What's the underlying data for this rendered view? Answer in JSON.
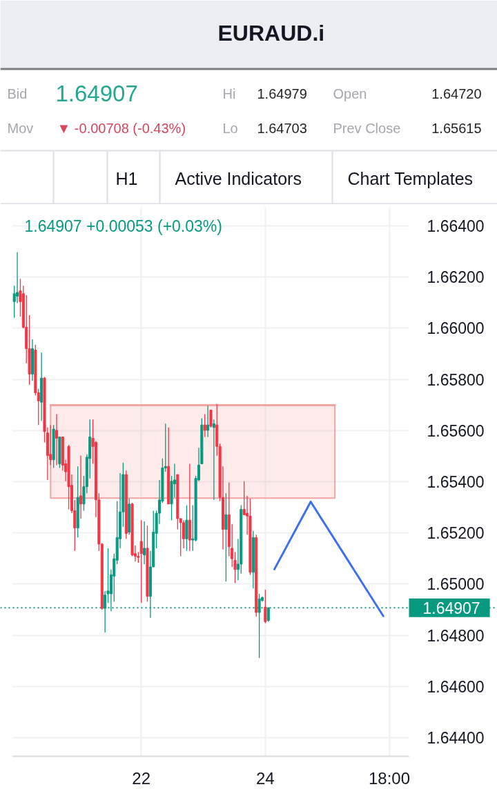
{
  "chart_data": {
    "type": "candlestick",
    "title": "EURAUD.i",
    "annotations": [
      "Bid",
      "1.64907",
      "Hi",
      "1.64979",
      "Open",
      "1.64720",
      "Mov",
      "▼ -0.00708 (-0.43%)",
      "Lo",
      "1.64703",
      "Prev Close",
      "1.65615",
      "H1",
      "Active Indicators",
      "Chart Templates",
      "1.64907 +0.00053 (+0.03%)"
    ],
    "categories": [
      null,
      null,
      null,
      null,
      null,
      null,
      null,
      null,
      null,
      null,
      null,
      null,
      null,
      null,
      null,
      null,
      null,
      null,
      null,
      null,
      null,
      null,
      null,
      null,
      null,
      null,
      null,
      null,
      null,
      null,
      null,
      null,
      null,
      null,
      null,
      null,
      null,
      null,
      null,
      null,
      null,
      null,
      "22",
      null,
      null,
      null,
      null,
      null,
      null,
      null,
      null,
      null,
      null,
      null,
      null,
      null,
      null,
      null,
      null,
      null,
      null,
      null,
      null,
      null,
      null,
      null,
      null,
      null,
      null,
      null,
      null,
      null,
      null,
      null,
      null,
      null,
      null,
      null,
      null,
      null,
      null,
      null,
      null,
      "24",
      null,
      null,
      null,
      null,
      null,
      null,
      null,
      null,
      null,
      null,
      null,
      null,
      null,
      null,
      null,
      null,
      null,
      null,
      null,
      null,
      null,
      null,
      null,
      null,
      null,
      null,
      null,
      null,
      null,
      null,
      null,
      null,
      null,
      null,
      null,
      null,
      null,
      null,
      null,
      null,
      "18:00",
      null,
      null,
      null,
      null,
      null,
      null
    ],
    "ohlc": [
      [
        1.66104,
        1.66166,
        1.66041,
        1.66135
      ],
      [
        1.66125,
        1.66297,
        1.66098,
        1.6614
      ],
      [
        1.66146,
        1.66193,
        1.66046,
        1.66104
      ],
      [
        1.66135,
        1.66166,
        1.65999,
        1.66004
      ],
      [
        1.66004,
        1.6613,
        1.65863,
        1.6592
      ],
      [
        1.6592,
        1.66051,
        1.65779,
        1.65821
      ],
      [
        1.65821,
        1.65957,
        1.65795,
        1.6592
      ],
      [
        1.65915,
        1.65936,
        1.65737,
        1.65748
      ],
      [
        1.65748,
        1.65763,
        1.65622,
        1.65716
      ],
      [
        1.65711,
        1.65905,
        1.65638,
        1.65805
      ],
      [
        1.65805,
        1.6581,
        1.65554,
        1.65596
      ],
      [
        1.65591,
        1.65612,
        1.65407,
        1.65502
      ],
      [
        1.65507,
        1.65622,
        1.65465,
        1.65486
      ],
      [
        1.65486,
        1.65622,
        1.65454,
        1.65606
      ],
      [
        1.65601,
        1.65664,
        1.65465,
        1.6557
      ],
      [
        1.6547,
        1.65575,
        1.65454,
        1.65575
      ],
      [
        1.65575,
        1.65575,
        1.65444,
        1.65465
      ],
      [
        1.6547,
        1.65486,
        1.65402,
        1.65439
      ],
      [
        1.65538,
        1.65544,
        1.65292,
        1.65381
      ],
      [
        1.65386,
        1.65428,
        1.65277,
        1.65287
      ],
      [
        1.65287,
        1.65329,
        1.6513,
        1.65219
      ],
      [
        1.65219,
        1.6546,
        1.65182,
        1.65339
      ],
      [
        1.65345,
        1.65502,
        1.65256,
        1.65313
      ],
      [
        1.65313,
        1.65423,
        1.65287,
        1.65381
      ],
      [
        1.65381,
        1.65507,
        1.65355,
        1.65496
      ],
      [
        1.65491,
        1.65643,
        1.65413,
        1.65575
      ],
      [
        1.6557,
        1.65643,
        1.6547,
        1.65538
      ],
      [
        1.65554,
        1.65559,
        1.65261,
        1.65329
      ],
      [
        1.65329,
        1.65355,
        1.6513,
        1.65156
      ],
      [
        1.65156,
        1.65161,
        1.649,
        1.64905
      ],
      [
        1.64905,
        1.64973,
        1.64811,
        1.64957
      ],
      [
        1.64962,
        1.6514,
        1.64926,
        1.64973
      ],
      [
        1.64962,
        1.65057,
        1.64894,
        1.65036
      ],
      [
        1.65031,
        1.65119,
        1.64931,
        1.65099
      ],
      [
        1.65093,
        1.65324,
        1.65078,
        1.65182
      ],
      [
        1.65177,
        1.65434,
        1.6514,
        1.65282
      ],
      [
        1.65282,
        1.65475,
        1.65224,
        1.65428
      ],
      [
        1.65428,
        1.65444,
        1.65177,
        1.65198
      ],
      [
        1.65203,
        1.65334,
        1.65193,
        1.65313
      ],
      [
        1.65313,
        1.65318,
        1.65109,
        1.65114
      ],
      [
        1.65119,
        1.65151,
        1.65088,
        1.65109
      ],
      [
        1.65109,
        1.65125,
        1.65083,
        1.65104
      ],
      [
        1.65167,
        1.6525,
        1.64926,
        1.65119
      ],
      [
        1.65114,
        1.65245,
        1.65078,
        1.6514
      ],
      [
        1.6514,
        1.65229,
        1.64931,
        1.64952
      ],
      [
        1.64952,
        1.6513,
        1.64868,
        1.65067
      ],
      [
        1.65067,
        1.65287,
        1.65067,
        1.65203
      ],
      [
        1.65198,
        1.65287,
        1.6514,
        1.65277
      ],
      [
        1.65277,
        1.65407,
        1.65235,
        1.65329
      ],
      [
        1.65324,
        1.65491,
        1.65318,
        1.65454
      ],
      [
        1.65454,
        1.65627,
        1.65439,
        1.6546
      ],
      [
        1.6546,
        1.65612,
        1.65313,
        1.65313
      ],
      [
        1.65313,
        1.65423,
        1.6525,
        1.65402
      ],
      [
        1.65392,
        1.6547,
        1.65339,
        1.65407
      ],
      [
        1.65428,
        1.65428,
        1.65214,
        1.65256
      ],
      [
        1.65256,
        1.65256,
        1.65109,
        1.6524
      ],
      [
        1.6524,
        1.6525,
        1.6514,
        1.65177
      ],
      [
        1.65177,
        1.65308,
        1.6513,
        1.6525
      ],
      [
        1.6525,
        1.6547,
        1.6513,
        1.65172
      ],
      [
        1.65172,
        1.65308,
        1.6513,
        1.65177
      ],
      [
        1.65172,
        1.65423,
        1.65167,
        1.65413
      ],
      [
        1.65407,
        1.65533,
        1.65402,
        1.65465
      ],
      [
        1.6547,
        1.65648,
        1.6547,
        1.65622
      ],
      [
        1.65622,
        1.65664,
        1.65575,
        1.65601
      ],
      [
        1.65601,
        1.65697,
        1.65575,
        1.65622
      ],
      [
        1.6568,
        1.6568,
        1.65612,
        1.65617
      ],
      [
        1.65612,
        1.65643,
        1.65329,
        1.65627
      ],
      [
        1.65622,
        1.65704,
        1.65502,
        1.65538
      ],
      [
        1.65538,
        1.65549,
        1.65324,
        1.65339
      ],
      [
        1.65339,
        1.6546,
        1.65135,
        1.65214
      ],
      [
        1.65214,
        1.65355,
        1.6501,
        1.65271
      ],
      [
        1.65271,
        1.65397,
        1.65109,
        1.65146
      ],
      [
        1.6514,
        1.65235,
        1.65067,
        1.65099
      ],
      [
        1.65093,
        1.65125,
        1.65004,
        1.65057
      ],
      [
        1.65057,
        1.65177,
        1.65015,
        1.65078
      ],
      [
        1.65078,
        1.65308,
        1.65041,
        1.65292
      ],
      [
        1.65292,
        1.65402,
        1.65271,
        1.65271
      ],
      [
        1.65277,
        1.65345,
        1.65193,
        1.65266
      ],
      [
        1.65266,
        1.65334,
        1.65036,
        1.65046
      ],
      [
        1.65046,
        1.65208,
        1.64983,
        1.65182
      ],
      [
        1.65182,
        1.65193,
        1.64873,
        1.64889
      ],
      [
        1.64889,
        1.64962,
        1.64711,
        1.64942
      ],
      [
        1.64936,
        1.64952,
        1.64931,
        1.64947
      ],
      [
        1.6491,
        1.64978,
        1.64847,
        1.64853
      ],
      [
        1.64858,
        1.6491,
        1.64853,
        1.64907
      ],
      null,
      null,
      null,
      null,
      null,
      null,
      null,
      null,
      null,
      null,
      null,
      null,
      null,
      null,
      null,
      null,
      null,
      null,
      null,
      null,
      null,
      null,
      null,
      null,
      null,
      null,
      null,
      null,
      null,
      null,
      null,
      null,
      null,
      null,
      null,
      null,
      null,
      null,
      null,
      null,
      null,
      null,
      null,
      null,
      null,
      null
    ],
    "colors": [
      "#089981",
      "#089981",
      "#f23645",
      "#f23645",
      "#f23645",
      "#f23645",
      "#089981",
      "#f23645",
      "#f23645",
      "#089981",
      "#f23645",
      "#f23645",
      "#f23645",
      "#089981",
      "#f23645",
      "#089981",
      "#f23645",
      "#f23645",
      "#f23645",
      "#f23645",
      "#f23645",
      "#089981",
      "#f23645",
      "#089981",
      "#089981",
      "#089981",
      "#f23645",
      "#f23645",
      "#f23645",
      "#f23645",
      "#089981",
      "#089981",
      "#089981",
      "#089981",
      "#089981",
      "#089981",
      "#089981",
      "#f23645",
      "#089981",
      "#f23645",
      "#f23645",
      "#f23645",
      "#f23645",
      "#089981",
      "#f23645",
      "#089981",
      "#089981",
      "#089981",
      "#089981",
      "#089981",
      "#089981",
      "#f23645",
      "#089981",
      "#089981",
      "#f23645",
      "#f23645",
      "#f23645",
      "#089981",
      "#f23645",
      "#089981",
      "#089981",
      "#089981",
      "#089981",
      "#f23645",
      "#089981",
      "#f23645",
      "#089981",
      "#f23645",
      "#f23645",
      "#f23645",
      "#089981",
      "#f23645",
      "#f23645",
      "#f23645",
      "#089981",
      "#089981",
      "#f23645",
      "#f23645",
      "#f23645",
      "#089981",
      "#f23645",
      "#089981",
      "#089981",
      "#f23645",
      "#089981",
      null,
      null,
      null,
      null,
      null,
      null,
      null,
      null,
      null,
      null,
      null,
      null,
      null,
      null,
      null,
      null,
      null,
      null,
      null,
      null,
      null,
      null,
      null,
      null,
      null,
      null,
      null,
      null,
      null,
      null,
      null,
      null,
      null,
      null,
      null,
      null,
      null,
      null,
      null,
      null,
      null,
      null,
      null,
      null,
      null,
      null
    ],
    "series": [
      {
        "type": "line",
        "color": "#f4a3a3",
        "values": [
          null,
          null,
          null,
          null,
          null,
          null,
          null,
          null,
          null,
          null,
          null,
          null,
          1.65699,
          1.65699,
          1.65699,
          1.65699,
          1.65699,
          1.65699,
          1.65699,
          1.65699,
          1.65699,
          1.65699,
          1.65699,
          1.65699,
          1.65699,
          1.65699,
          1.65699,
          1.65699,
          1.65699,
          1.65699,
          1.65699,
          1.65699,
          1.65699,
          1.65699,
          1.65699,
          1.65699,
          1.65699,
          1.65699,
          1.65699,
          1.65699,
          1.65699,
          1.65699,
          1.65699,
          1.65699,
          1.65699,
          1.65699,
          1.65699,
          1.65699,
          1.65699,
          1.65699,
          1.65699,
          1.65699,
          1.65699,
          1.65699,
          1.65699,
          1.65699,
          1.65699,
          1.65699,
          1.65699,
          1.65699,
          1.65699,
          1.65699,
          1.65699,
          1.65699,
          1.65699,
          1.65699,
          1.65699,
          1.65699,
          1.65699,
          1.65699,
          1.65699,
          1.65699,
          1.65699,
          1.65699,
          1.65699,
          1.65699,
          1.65699,
          1.65699,
          1.65699,
          1.65699,
          1.65699,
          1.65699,
          1.65699,
          1.65699,
          1.65699,
          1.65699,
          1.65699,
          1.65699,
          1.65699,
          1.65699,
          1.65699,
          1.65699,
          1.65699,
          1.65699,
          1.65699,
          1.65699,
          1.65699,
          1.65699,
          1.65699,
          1.65699,
          1.65699,
          1.65699,
          1.65699,
          1.65699,
          1.65699,
          1.65699,
          1.65699,
          null,
          null,
          null,
          null,
          null,
          null,
          null,
          null,
          null,
          null,
          null,
          null,
          null,
          null,
          null,
          null,
          null,
          null,
          null,
          null,
          null,
          null,
          null,
          null
        ],
        "upper": [
          null,
          null,
          null,
          null,
          null,
          null,
          null,
          null,
          null,
          null,
          null,
          null,
          1.65699,
          1.65699,
          1.65699,
          1.65699,
          1.65699,
          1.65699,
          1.65699,
          1.65699,
          1.65699,
          1.65699,
          1.65699,
          1.65699,
          1.65699,
          1.65699,
          1.65699,
          1.65699,
          1.65699,
          1.65699,
          1.65699,
          1.65699,
          1.65699,
          1.65699,
          1.65699,
          1.65699,
          1.65699,
          1.65699,
          1.65699,
          1.65699,
          1.65699,
          1.65699,
          1.65699,
          1.65699,
          1.65699,
          1.65699,
          1.65699,
          1.65699,
          1.65699,
          1.65699,
          1.65699,
          1.65699,
          1.65699,
          1.65699,
          1.65699,
          1.65699,
          1.65699,
          1.65699,
          1.65699,
          1.65699,
          1.65699,
          1.65699,
          1.65699,
          1.65699,
          1.65699,
          1.65699,
          1.65699,
          1.65699,
          1.65699,
          1.65699,
          1.65699,
          1.65699,
          1.65699,
          1.65699,
          1.65699,
          1.65699,
          1.65699,
          1.65699,
          1.65699,
          1.65699,
          1.65699,
          1.65699,
          1.65699,
          1.65699,
          1.65699,
          1.65699,
          1.65699,
          1.65699,
          1.65699,
          1.65699,
          1.65699,
          1.65699,
          1.65699,
          1.65699,
          1.65699,
          1.65699,
          1.65699,
          1.65699,
          1.65699,
          1.65699,
          1.65699,
          1.65699,
          1.65699,
          1.65699,
          1.65699,
          1.65699,
          1.65699,
          null,
          null,
          null,
          null,
          null,
          null,
          null,
          null,
          null,
          null,
          null,
          null,
          null,
          null,
          null,
          null,
          null,
          null,
          null,
          null,
          null,
          null,
          null,
          null
        ],
        "lower": [
          null,
          null,
          null,
          null,
          null,
          null,
          null,
          null,
          null,
          null,
          null,
          null,
          1.65336,
          1.65336,
          1.65336,
          1.65336,
          1.65336,
          1.65336,
          1.65336,
          1.65336,
          1.65336,
          1.65336,
          1.65336,
          1.65336,
          1.65336,
          1.65336,
          1.65336,
          1.65336,
          1.65336,
          1.65336,
          1.65336,
          1.65336,
          1.65336,
          1.65336,
          1.65336,
          1.65336,
          1.65336,
          1.65336,
          1.65336,
          1.65336,
          1.65336,
          1.65336,
          1.65336,
          1.65336,
          1.65336,
          1.65336,
          1.65336,
          1.65336,
          1.65336,
          1.65336,
          1.65336,
          1.65336,
          1.65336,
          1.65336,
          1.65336,
          1.65336,
          1.65336,
          1.65336,
          1.65336,
          1.65336,
          1.65336,
          1.65336,
          1.65336,
          1.65336,
          1.65336,
          1.65336,
          1.65336,
          1.65336,
          1.65336,
          1.65336,
          1.65336,
          1.65336,
          1.65336,
          1.65336,
          1.65336,
          1.65336,
          1.65336,
          1.65336,
          1.65336,
          1.65336,
          1.65336,
          1.65336,
          1.65336,
          1.65336,
          1.65336,
          1.65336,
          1.65336,
          1.65336,
          1.65336,
          1.65336,
          1.65336,
          1.65336,
          1.65336,
          1.65336,
          1.65336,
          1.65336,
          1.65336,
          1.65336,
          1.65336,
          1.65336,
          1.65336,
          1.65336,
          1.65336,
          1.65336,
          1.65336,
          1.65336,
          1.65336,
          null,
          null,
          null,
          null,
          null,
          null,
          null,
          null,
          null,
          null,
          null,
          null,
          null,
          null,
          null,
          null,
          null,
          null,
          null,
          null,
          null,
          null,
          null,
          null
        ]
      },
      {
        "type": "line",
        "color": "#3d6ff0",
        "values": [
          null,
          null,
          null,
          null,
          null,
          null,
          null,
          null,
          null,
          null,
          null,
          null,
          null,
          null,
          null,
          null,
          null,
          null,
          null,
          null,
          null,
          null,
          null,
          null,
          null,
          null,
          null,
          null,
          null,
          null,
          null,
          null,
          null,
          null,
          null,
          null,
          null,
          null,
          null,
          null,
          null,
          null,
          null,
          null,
          null,
          null,
          null,
          null,
          null,
          null,
          null,
          null,
          null,
          null,
          null,
          null,
          null,
          null,
          null,
          null,
          null,
          null,
          null,
          null,
          null,
          null,
          null,
          null,
          null,
          null,
          null,
          null,
          null,
          null,
          null,
          null,
          null,
          null,
          null,
          null,
          null,
          null,
          null,
          null,
          null,
          null,
          1.65058,
          null,
          null,
          null,
          null,
          null,
          null,
          null,
          null,
          null,
          null,
          null,
          1.65322,
          null,
          null,
          null,
          null,
          null,
          null,
          null,
          null,
          null,
          null,
          null,
          null,
          null,
          null,
          null,
          null,
          null,
          null,
          null,
          null,
          null,
          null,
          null,
          1.64875,
          null,
          null,
          null,
          null,
          null,
          null,
          null,
          null
        ]
      }
    ],
    "ylim": [
      1.64327,
      1.66473
    ],
    "yticks": [
      {
        "value": 1.644,
        "label": "1.64400"
      },
      {
        "value": 1.646,
        "label": "1.64600"
      },
      {
        "value": 1.648,
        "label": "1.64800"
      },
      {
        "value": 1.65,
        "label": "1.65000"
      },
      {
        "value": 1.652,
        "label": "1.65200"
      },
      {
        "value": 1.654,
        "label": "1.65400"
      },
      {
        "value": 1.656,
        "label": "1.65600"
      },
      {
        "value": 1.658,
        "label": "1.65800"
      },
      {
        "value": 1.66,
        "label": "1.66000"
      },
      {
        "value": 1.662,
        "label": "1.66200"
      },
      {
        "value": 1.664,
        "label": "1.66400"
      }
    ],
    "ref_lines": [
      {
        "axis": "y",
        "value": 1.64907,
        "label": "1.64907",
        "color": "#089981",
        "line_style": "dotted"
      }
    ],
    "grid": true
  }
}
